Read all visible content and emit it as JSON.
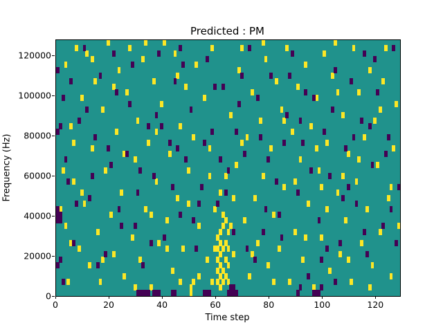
{
  "chart_data": {
    "type": "heatmap",
    "title": "Predicted : PM",
    "xlabel": "Time step",
    "ylabel": "Frequency (Hz)",
    "xlim": [
      0,
      129
    ],
    "ylim": [
      0,
      128000
    ],
    "xticks": [
      0,
      20,
      40,
      60,
      80,
      100,
      120
    ],
    "xtick_labels": [
      "0",
      "20",
      "40",
      "60",
      "80",
      "100",
      "120"
    ],
    "yticks": [
      0,
      20000,
      40000,
      60000,
      80000,
      100000,
      120000
    ],
    "ytick_labels": [
      "0",
      "20000",
      "40000",
      "60000",
      "80000",
      "100000",
      "120000"
    ],
    "n_cols": 129,
    "n_rows": 46,
    "legend": "none",
    "grid": "off",
    "colors": {
      "background": "#20928c",
      "high": "#fde725",
      "low": "#440154",
      "axes": "#000000"
    },
    "cells": {
      "yellow": [
        [
          3,
          41
        ],
        [
          3,
          12
        ],
        [
          4,
          2
        ],
        [
          5,
          30
        ],
        [
          6,
          20
        ],
        [
          7,
          44
        ],
        [
          8,
          8
        ],
        [
          9,
          35
        ],
        [
          10,
          16
        ],
        [
          11,
          43
        ],
        [
          12,
          5
        ],
        [
          13,
          26
        ],
        [
          14,
          38
        ],
        [
          15,
          11
        ],
        [
          16,
          2
        ],
        [
          17,
          33
        ],
        [
          18,
          22
        ],
        [
          19,
          45
        ],
        [
          20,
          14
        ],
        [
          21,
          7
        ],
        [
          22,
          29
        ],
        [
          23,
          40
        ],
        [
          24,
          18
        ],
        [
          25,
          3
        ],
        [
          26,
          36
        ],
        [
          27,
          44
        ],
        [
          28,
          10
        ],
        [
          29,
          24
        ],
        [
          30,
          31
        ],
        [
          31,
          6
        ],
        [
          32,
          42
        ],
        [
          33,
          15
        ],
        [
          34,
          27
        ],
        [
          35,
          1
        ],
        [
          36,
          38
        ],
        [
          37,
          20
        ],
        [
          38,
          9
        ],
        [
          39,
          34
        ],
        [
          40,
          45
        ],
        [
          41,
          13
        ],
        [
          42,
          25
        ],
        [
          43,
          4
        ],
        [
          44,
          43
        ],
        [
          45,
          17
        ],
        [
          46,
          30
        ],
        [
          47,
          8
        ],
        [
          48,
          37
        ],
        [
          49,
          22
        ],
        [
          50,
          1
        ],
        [
          50,
          0
        ],
        [
          51,
          2
        ],
        [
          51,
          28
        ],
        [
          52,
          41
        ],
        [
          53,
          12
        ],
        [
          54,
          19
        ],
        [
          55,
          35
        ],
        [
          56,
          6
        ],
        [
          57,
          26
        ],
        [
          58,
          44
        ],
        [
          59,
          15
        ],
        [
          60,
          2
        ],
        [
          60,
          4
        ],
        [
          60,
          6
        ],
        [
          60,
          8
        ],
        [
          60,
          10
        ],
        [
          61,
          1
        ],
        [
          61,
          3
        ],
        [
          61,
          5
        ],
        [
          61,
          7
        ],
        [
          61,
          9
        ],
        [
          61,
          11
        ],
        [
          62,
          2
        ],
        [
          62,
          4
        ],
        [
          62,
          8
        ],
        [
          62,
          12
        ],
        [
          62,
          14
        ],
        [
          63,
          3
        ],
        [
          63,
          6
        ],
        [
          63,
          9
        ],
        [
          63,
          13
        ],
        [
          64,
          2
        ],
        [
          64,
          5
        ],
        [
          64,
          8
        ],
        [
          64,
          11
        ],
        [
          63,
          21
        ],
        [
          61,
          18
        ],
        [
          65,
          32
        ],
        [
          66,
          7
        ],
        [
          67,
          23
        ],
        [
          68,
          40
        ],
        [
          69,
          44
        ],
        [
          70,
          13
        ],
        [
          71,
          28
        ],
        [
          72,
          3
        ],
        [
          73,
          36
        ],
        [
          74,
          17
        ],
        [
          75,
          9
        ],
        [
          76,
          31
        ],
        [
          77,
          21
        ],
        [
          78,
          42
        ],
        [
          79,
          5
        ],
        [
          80,
          26
        ],
        [
          81,
          14
        ],
        [
          82,
          38
        ],
        [
          83,
          8
        ],
        [
          84,
          33
        ],
        [
          85,
          19
        ],
        [
          86,
          44
        ],
        [
          87,
          2
        ],
        [
          88,
          29
        ],
        [
          89,
          11
        ],
        [
          90,
          37
        ],
        [
          91,
          24
        ],
        [
          92,
          6
        ],
        [
          93,
          41
        ],
        [
          94,
          16
        ],
        [
          95,
          30
        ],
        [
          96,
          1
        ],
        [
          97,
          35
        ],
        [
          98,
          22
        ],
        [
          99,
          10
        ],
        [
          100,
          43
        ],
        [
          101,
          27
        ],
        [
          102,
          4
        ],
        [
          103,
          39
        ],
        [
          104,
          45
        ],
        [
          105,
          18
        ],
        [
          106,
          7
        ],
        [
          107,
          32
        ],
        [
          108,
          13
        ],
        [
          109,
          25
        ],
        [
          110,
          2
        ],
        [
          111,
          44
        ],
        [
          112,
          20
        ],
        [
          113,
          36
        ],
        [
          114,
          9
        ],
        [
          115,
          28
        ],
        [
          116,
          15
        ],
        [
          117,
          40
        ],
        [
          118,
          5
        ],
        [
          119,
          31
        ],
        [
          120,
          23
        ],
        [
          121,
          11
        ],
        [
          122,
          38
        ],
        [
          123,
          44
        ],
        [
          124,
          17
        ],
        [
          125,
          3
        ],
        [
          126,
          26
        ],
        [
          127,
          34
        ],
        [
          128,
          12
        ],
        [
          2,
          22
        ],
        [
          5,
          9
        ],
        [
          9,
          18
        ],
        [
          13,
          42
        ],
        [
          17,
          6
        ],
        [
          21,
          37
        ],
        [
          25,
          25
        ],
        [
          29,
          1
        ],
        [
          33,
          45
        ],
        [
          37,
          29
        ],
        [
          41,
          8
        ],
        [
          45,
          39
        ],
        [
          49,
          16
        ],
        [
          53,
          3
        ],
        [
          57,
          21
        ],
        [
          65,
          12
        ],
        [
          69,
          27
        ],
        [
          73,
          7
        ],
        [
          77,
          45
        ],
        [
          81,
          2
        ],
        [
          85,
          31
        ],
        [
          89,
          20
        ],
        [
          93,
          10
        ],
        [
          97,
          26
        ],
        [
          101,
          15
        ],
        [
          105,
          36
        ],
        [
          109,
          6
        ],
        [
          113,
          24
        ],
        [
          117,
          1
        ],
        [
          121,
          33
        ],
        [
          125,
          19
        ],
        [
          1,
          15
        ],
        [
          6,
          27
        ],
        [
          58,
          2
        ],
        [
          59,
          8
        ],
        [
          66,
          17
        ],
        [
          46,
          2
        ],
        [
          35,
          14
        ],
        [
          107,
          21
        ],
        [
          99,
          19
        ]
      ],
      "purple": [
        [
          0,
          13
        ],
        [
          0,
          14
        ],
        [
          0,
          15
        ],
        [
          1,
          13
        ],
        [
          1,
          14
        ],
        [
          0,
          5
        ],
        [
          1,
          6
        ],
        [
          0,
          29
        ],
        [
          1,
          30
        ],
        [
          30,
          0
        ],
        [
          31,
          0
        ],
        [
          32,
          0
        ],
        [
          33,
          0
        ],
        [
          34,
          0
        ],
        [
          36,
          0
        ],
        [
          37,
          0
        ],
        [
          38,
          0
        ],
        [
          55,
          0
        ],
        [
          56,
          0
        ],
        [
          57,
          0
        ],
        [
          64,
          0
        ],
        [
          65,
          0
        ],
        [
          66,
          0
        ],
        [
          67,
          0
        ],
        [
          65,
          1
        ],
        [
          66,
          1
        ],
        [
          96,
          0
        ],
        [
          97,
          0
        ],
        [
          43,
          0
        ],
        [
          44,
          0
        ],
        [
          98,
          0
        ],
        [
          99,
          1
        ],
        [
          90,
          0
        ],
        [
          91,
          1
        ],
        [
          2,
          35
        ],
        [
          4,
          20
        ],
        [
          6,
          9
        ],
        [
          8,
          31
        ],
        [
          10,
          44
        ],
        [
          12,
          17
        ],
        [
          14,
          28
        ],
        [
          16,
          39
        ],
        [
          18,
          7
        ],
        [
          20,
          23
        ],
        [
          22,
          36
        ],
        [
          24,
          12
        ],
        [
          26,
          25
        ],
        [
          28,
          41
        ],
        [
          30,
          18
        ],
        [
          32,
          5
        ],
        [
          34,
          30
        ],
        [
          36,
          21
        ],
        [
          38,
          43
        ],
        [
          40,
          10
        ],
        [
          42,
          27
        ],
        [
          44,
          38
        ],
        [
          46,
          14
        ],
        [
          48,
          24
        ],
        [
          50,
          33
        ],
        [
          52,
          8
        ],
        [
          54,
          19
        ],
        [
          56,
          42
        ],
        [
          58,
          29
        ],
        [
          60,
          16
        ],
        [
          62,
          37
        ],
        [
          64,
          22
        ],
        [
          66,
          11
        ],
        [
          68,
          34
        ],
        [
          70,
          25
        ],
        [
          72,
          44
        ],
        [
          74,
          6
        ],
        [
          76,
          28
        ],
        [
          78,
          15
        ],
        [
          80,
          39
        ],
        [
          82,
          20
        ],
        [
          84,
          10
        ],
        [
          86,
          32
        ],
        [
          88,
          43
        ],
        [
          90,
          18
        ],
        [
          92,
          27
        ],
        [
          94,
          3
        ],
        [
          96,
          35
        ],
        [
          98,
          13
        ],
        [
          100,
          29
        ],
        [
          102,
          21
        ],
        [
          104,
          40
        ],
        [
          106,
          9
        ],
        [
          108,
          26
        ],
        [
          110,
          38
        ],
        [
          112,
          16
        ],
        [
          114,
          31
        ],
        [
          116,
          7
        ],
        [
          118,
          23
        ],
        [
          120,
          36
        ],
        [
          122,
          12
        ],
        [
          124,
          28
        ],
        [
          126,
          44
        ],
        [
          128,
          19
        ],
        [
          3,
          24
        ],
        [
          7,
          16
        ],
        [
          11,
          33
        ],
        [
          15,
          5
        ],
        [
          19,
          26
        ],
        [
          23,
          15
        ],
        [
          27,
          34
        ],
        [
          31,
          22
        ],
        [
          35,
          9
        ],
        [
          39,
          30
        ],
        [
          43,
          19
        ],
        [
          47,
          41
        ],
        [
          51,
          13
        ],
        [
          55,
          27
        ],
        [
          59,
          37
        ],
        [
          63,
          18
        ],
        [
          67,
          29
        ],
        [
          71,
          8
        ],
        [
          75,
          35
        ],
        [
          79,
          24
        ],
        [
          83,
          14
        ],
        [
          87,
          39
        ],
        [
          91,
          31
        ],
        [
          95,
          22
        ],
        [
          99,
          6
        ],
        [
          103,
          33
        ],
        [
          107,
          17
        ],
        [
          111,
          28
        ],
        [
          115,
          11
        ],
        [
          119,
          42
        ],
        [
          123,
          25
        ],
        [
          127,
          9
        ],
        [
          5,
          38
        ],
        [
          13,
          21
        ],
        [
          21,
          43
        ],
        [
          29,
          12
        ],
        [
          37,
          32
        ],
        [
          45,
          26
        ],
        [
          53,
          16
        ],
        [
          61,
          24
        ],
        [
          69,
          39
        ],
        [
          77,
          11
        ],
        [
          85,
          27
        ],
        [
          93,
          36
        ],
        [
          101,
          8
        ],
        [
          109,
          19
        ],
        [
          117,
          30
        ],
        [
          125,
          15
        ],
        [
          0,
          40
        ],
        [
          2,
          2
        ],
        [
          46,
          44
        ],
        [
          104,
          2
        ],
        [
          115,
          43
        ]
      ]
    }
  }
}
